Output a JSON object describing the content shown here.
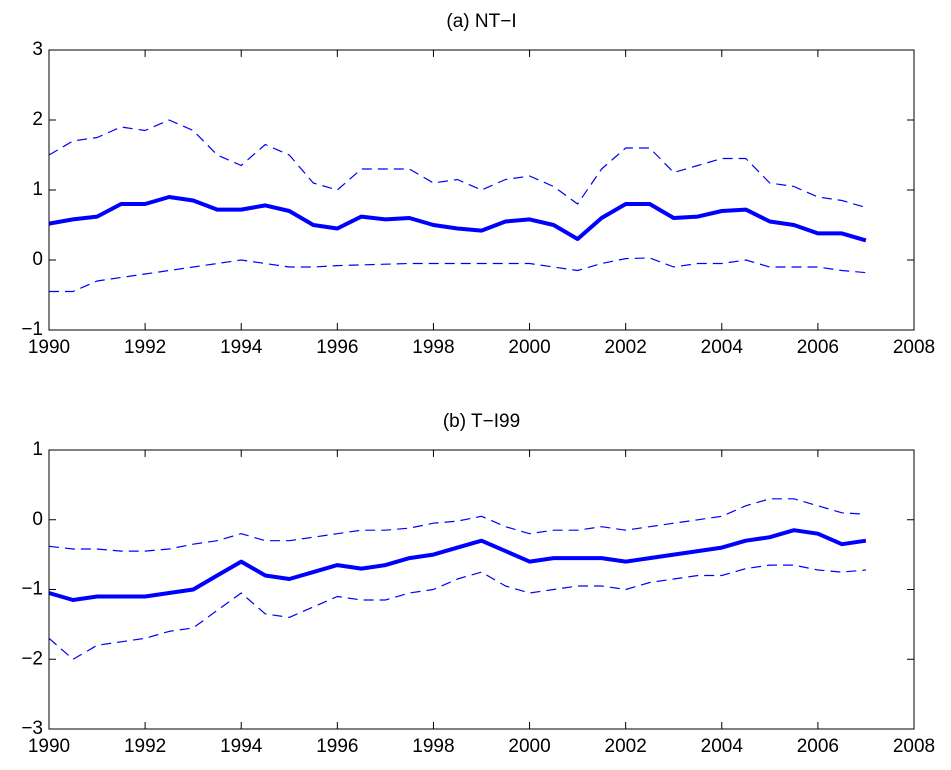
{
  "chart_data": [
    {
      "type": "line",
      "title": "(a) NT−I",
      "x": [
        1990,
        1990.5,
        1991,
        1991.5,
        1992,
        1992.5,
        1993,
        1993.5,
        1994,
        1994.5,
        1995,
        1995.5,
        1996,
        1996.5,
        1997,
        1997.5,
        1998,
        1998.5,
        1999,
        1999.5,
        2000,
        2000.5,
        2001,
        2001.5,
        2002,
        2002.5,
        2003,
        2003.5,
        2004,
        2004.5,
        2005,
        2005.5,
        2006,
        2006.5,
        2007
      ],
      "series": [
        {
          "color": "#0000ff",
          "style": "dashed",
          "width": 1.2,
          "values": [
            1.5,
            1.7,
            1.75,
            1.9,
            1.85,
            2.0,
            1.85,
            1.5,
            1.35,
            1.65,
            1.5,
            1.1,
            1.0,
            1.3,
            1.3,
            1.3,
            1.1,
            1.15,
            1.0,
            1.15,
            1.2,
            1.05,
            0.8,
            1.3,
            1.6,
            1.6,
            1.25,
            1.35,
            1.45,
            1.45,
            1.1,
            1.05,
            0.9,
            0.85,
            0.75
          ]
        },
        {
          "color": "#0000ff",
          "style": "solid",
          "width": 4,
          "values": [
            0.52,
            0.58,
            0.62,
            0.8,
            0.8,
            0.9,
            0.85,
            0.72,
            0.72,
            0.78,
            0.7,
            0.5,
            0.45,
            0.62,
            0.58,
            0.6,
            0.5,
            0.45,
            0.42,
            0.55,
            0.58,
            0.5,
            0.3,
            0.6,
            0.8,
            0.8,
            0.6,
            0.62,
            0.7,
            0.72,
            0.55,
            0.5,
            0.38,
            0.38,
            0.28
          ]
        },
        {
          "color": "#0000ff",
          "style": "dashed",
          "width": 1.2,
          "values": [
            -0.45,
            -0.45,
            -0.3,
            -0.25,
            -0.2,
            -0.15,
            -0.1,
            -0.05,
            0,
            -0.05,
            -0.1,
            -0.1,
            -0.08,
            -0.07,
            -0.06,
            -0.05,
            -0.05,
            -0.05,
            -0.05,
            -0.05,
            -0.05,
            -0.1,
            -0.15,
            -0.05,
            0.02,
            0.03,
            -0.1,
            -0.05,
            -0.05,
            0,
            -0.1,
            -0.1,
            -0.1,
            -0.15,
            -0.18
          ]
        }
      ],
      "xlim": [
        1990,
        2008
      ],
      "xticks": [
        1990,
        1992,
        1994,
        1996,
        1998,
        2000,
        2002,
        2004,
        2006,
        2008
      ],
      "ylim": [
        -1,
        3
      ],
      "yticks": [
        {
          "value": -1,
          "label": "−1"
        },
        0,
        1,
        2,
        3
      ]
    },
    {
      "type": "line",
      "title": "(b) T−I99",
      "x": [
        1990,
        1990.5,
        1991,
        1991.5,
        1992,
        1992.5,
        1993,
        1993.5,
        1994,
        1994.5,
        1995,
        1995.5,
        1996,
        1996.5,
        1997,
        1997.5,
        1998,
        1998.5,
        1999,
        1999.5,
        2000,
        2000.5,
        2001,
        2001.5,
        2002,
        2002.5,
        2003,
        2003.5,
        2004,
        2004.5,
        2005,
        2005.5,
        2006,
        2006.5,
        2007
      ],
      "series": [
        {
          "color": "#0000ff",
          "style": "dashed",
          "width": 1.2,
          "values": [
            -0.38,
            -0.42,
            -0.42,
            -0.45,
            -0.45,
            -0.42,
            -0.35,
            -0.3,
            -0.2,
            -0.3,
            -0.3,
            -0.25,
            -0.2,
            -0.15,
            -0.15,
            -0.12,
            -0.05,
            -0.02,
            0.05,
            -0.1,
            -0.2,
            -0.15,
            -0.15,
            -0.1,
            -0.15,
            -0.1,
            -0.05,
            0,
            0.05,
            0.2,
            0.3,
            0.3,
            0.2,
            0.1,
            0.08
          ]
        },
        {
          "color": "#0000ff",
          "style": "solid",
          "width": 4,
          "values": [
            -1.05,
            -1.15,
            -1.1,
            -1.1,
            -1.1,
            -1.05,
            -1.0,
            -0.8,
            -0.6,
            -0.8,
            -0.85,
            -0.75,
            -0.65,
            -0.7,
            -0.65,
            -0.55,
            -0.5,
            -0.4,
            -0.3,
            -0.45,
            -0.6,
            -0.55,
            -0.55,
            -0.55,
            -0.6,
            -0.55,
            -0.5,
            -0.45,
            -0.4,
            -0.3,
            -0.25,
            -0.15,
            -0.2,
            -0.35,
            -0.3
          ]
        },
        {
          "color": "#0000ff",
          "style": "dashed",
          "width": 1.2,
          "values": [
            -1.7,
            -2.0,
            -1.8,
            -1.75,
            -1.7,
            -1.6,
            -1.55,
            -1.3,
            -1.05,
            -1.35,
            -1.4,
            -1.25,
            -1.1,
            -1.15,
            -1.15,
            -1.05,
            -1.0,
            -0.85,
            -0.75,
            -0.95,
            -1.05,
            -1.0,
            -0.95,
            -0.95,
            -1.0,
            -0.9,
            -0.85,
            -0.8,
            -0.8,
            -0.7,
            -0.65,
            -0.65,
            -0.72,
            -0.75,
            -0.72
          ]
        }
      ],
      "xlim": [
        1990,
        2008
      ],
      "xticks": [
        1990,
        1992,
        1994,
        1996,
        1998,
        2000,
        2002,
        2004,
        2006,
        2008
      ],
      "ylim": [
        -3,
        1
      ],
      "yticks": [
        {
          "value": -3,
          "label": "−3"
        },
        {
          "value": -2,
          "label": "−2"
        },
        {
          "value": -1,
          "label": "−1"
        },
        0,
        1
      ]
    }
  ]
}
